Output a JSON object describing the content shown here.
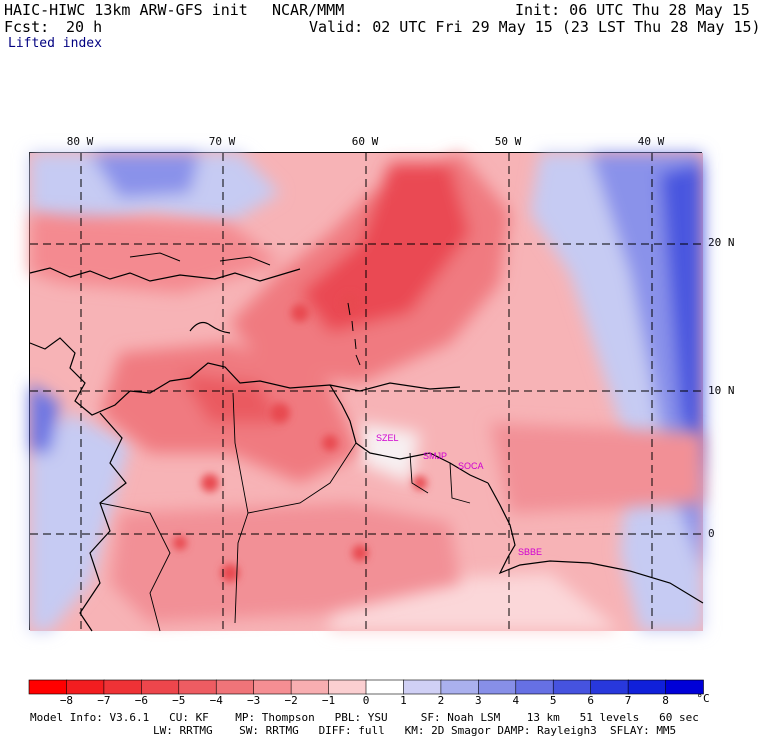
{
  "header": {
    "model_title": "HAIC-HIWC 13km ARW-GFS init",
    "org": "NCAR/MMM",
    "init": "Init: 06 UTC Thu 28 May 15",
    "fcst_label": "Fcst:",
    "fcst_value": "20 h",
    "valid": "Valid: 02 UTC Fri 29 May 15 (23 LST Thu 28 May 15)",
    "field": "Lifted index"
  },
  "map": {
    "lon_labels": [
      "80 W",
      "70 W",
      "60 W",
      "50 W",
      "40 W"
    ],
    "lat_labels": [
      "20 N",
      "10 N",
      "0"
    ],
    "station_labels": [
      "SZEL",
      "SMJP",
      "SOCA",
      "SBBE"
    ],
    "colors": {
      "negative_strong": "#e8383c",
      "negative_mid": "#f47e84",
      "negative_weak": "#fcc8cc",
      "positive_weak": "#c8ccf4",
      "positive_mid": "#8088ec",
      "positive_strong": "#2c38e0"
    }
  },
  "colorbar": {
    "tick_labels": [
      "−8",
      "−7",
      "−6",
      "−5",
      "−4",
      "−3",
      "−2",
      "−1",
      "0",
      "1",
      "2",
      "3",
      "4",
      "5",
      "6",
      "7",
      "8"
    ],
    "unit": "°C",
    "colors": [
      "#ff0000",
      "#f31d20",
      "#ef3236",
      "#ed464c",
      "#ee5c62",
      "#f07479",
      "#f58e93",
      "#f8aeb1",
      "#fbcfd1",
      "#ffffff",
      "#d0d0f5",
      "#aab0ee",
      "#878fe8",
      "#6670e4",
      "#4653df",
      "#2838dc",
      "#1020da",
      "#0000d8"
    ]
  },
  "footer": {
    "line1": "Model Info: V3.6.1   CU: KF    MP: Thompson   PBL: YSU     SF: Noah LSM    13 km   51 levels   60 sec",
    "line2": "LW: RRTMG    SW: RRTMG   DIFF: full   KM: 2D Smagor DAMP: Rayleigh3  SFLAY: MM5"
  }
}
